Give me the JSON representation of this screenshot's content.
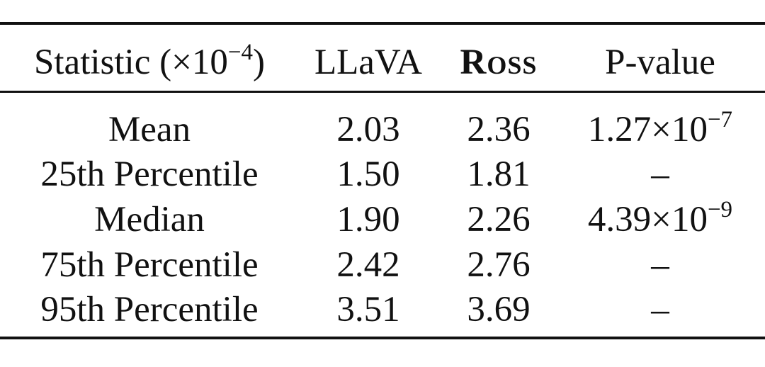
{
  "table": {
    "header": {
      "statistic": {
        "label": "Statistic (",
        "times": "×10",
        "exp": "−4",
        "close": ")"
      },
      "llava": "LLaVA",
      "ross": "Ross",
      "pvalue": "P-value"
    },
    "rows": [
      {
        "statistic": "Mean",
        "llava": "2.03",
        "ross": "2.36",
        "pvalue": {
          "base": "1.27×10",
          "exp": "−7"
        }
      },
      {
        "statistic": "25th Percentile",
        "llava": "1.50",
        "ross": "1.81",
        "pvalue": {
          "base": "–",
          "exp": ""
        }
      },
      {
        "statistic": "Median",
        "llava": "1.90",
        "ross": "2.26",
        "pvalue": {
          "base": "4.39×10",
          "exp": "−9"
        }
      },
      {
        "statistic": "75th Percentile",
        "llava": "2.42",
        "ross": "2.76",
        "pvalue": {
          "base": "–",
          "exp": ""
        }
      },
      {
        "statistic": "95th Percentile",
        "llava": "3.51",
        "ross": "3.69",
        "pvalue": {
          "base": "–",
          "exp": ""
        }
      }
    ]
  }
}
